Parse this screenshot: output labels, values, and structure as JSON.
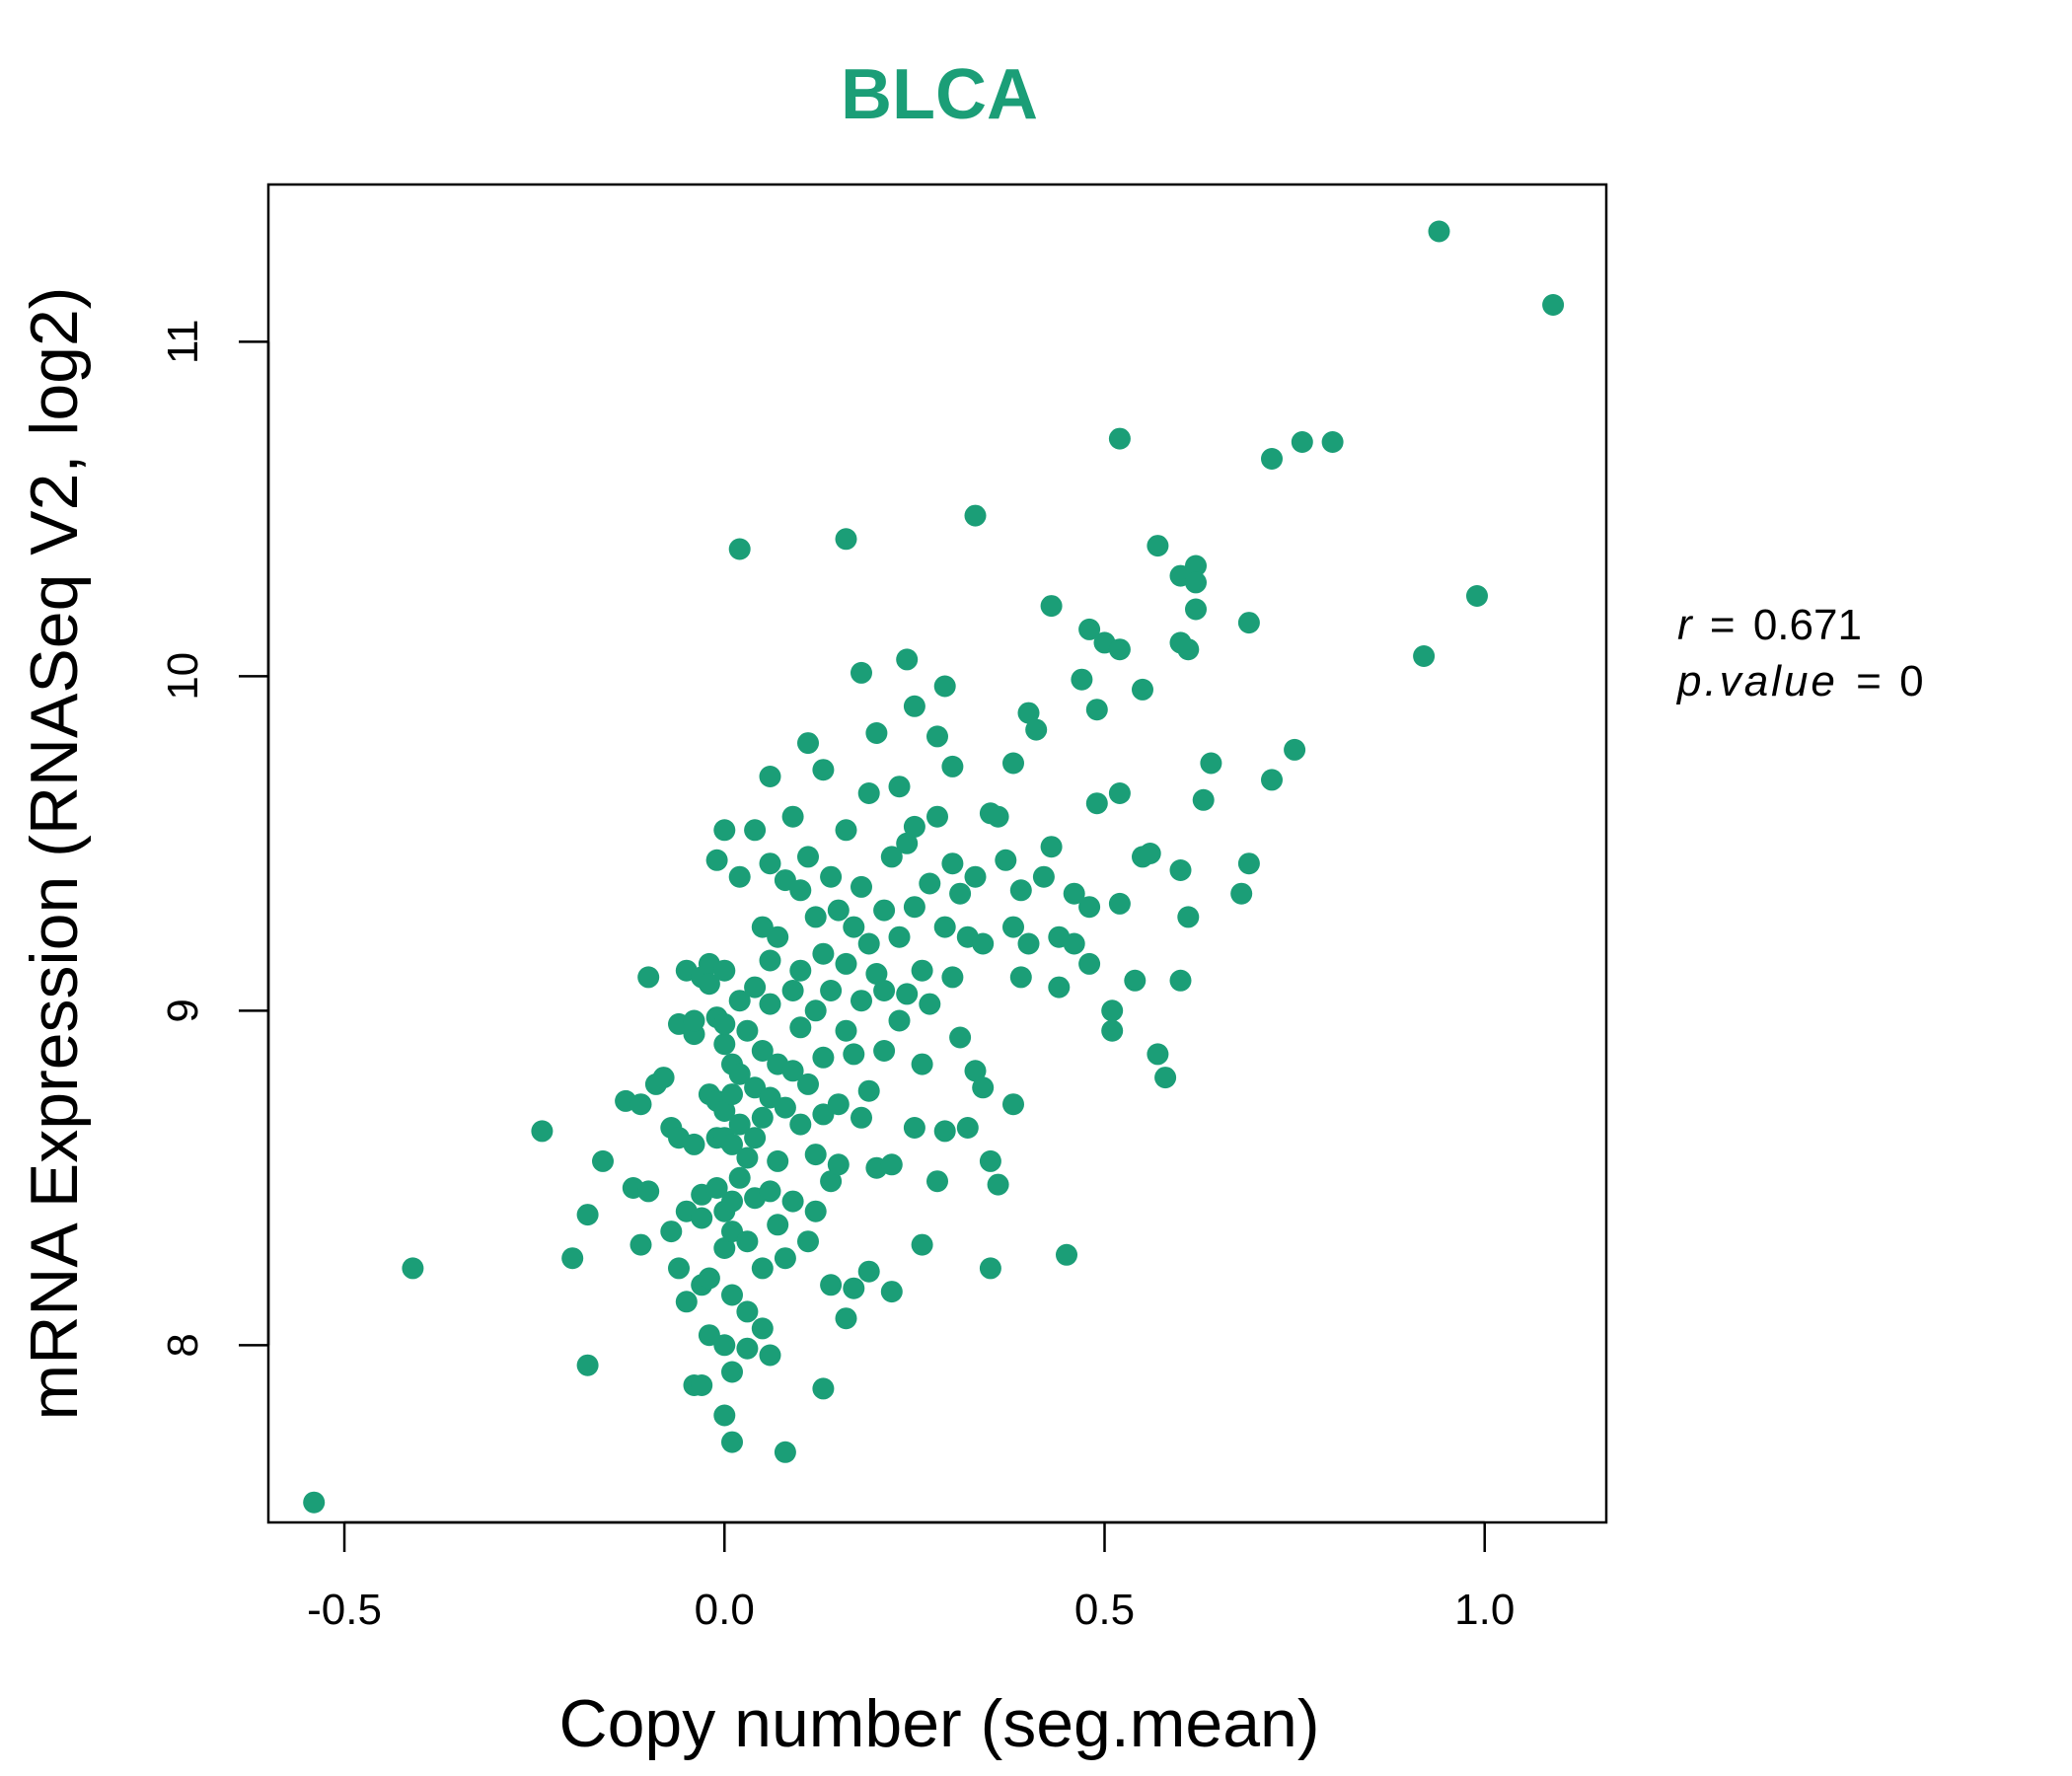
{
  "chart_data": {
    "type": "scatter",
    "title": "BLCA",
    "xlabel": "Copy number (seg.mean)",
    "ylabel": "mRNA Expression (RNASeq V2, log2)",
    "xlim": [
      -0.6,
      1.16
    ],
    "ylim": [
      7.47,
      11.47
    ],
    "xticks": [
      -0.5,
      0.0,
      0.5,
      1.0
    ],
    "xtick_labels": [
      "-0.5",
      "0.0",
      "0.5",
      "1.0"
    ],
    "yticks": [
      8,
      9,
      10,
      11
    ],
    "ytick_labels": [
      "8",
      "9",
      "10",
      "11"
    ],
    "grid": false,
    "color": "#1b9e77",
    "annotation": {
      "r_label": "r",
      "r_value": "0.671",
      "p_label": "p.value",
      "p_value": "0"
    },
    "points": [
      [
        -0.54,
        7.53
      ],
      [
        -0.41,
        8.23
      ],
      [
        -0.24,
        8.64
      ],
      [
        -0.2,
        8.26
      ],
      [
        -0.18,
        8.39
      ],
      [
        -0.18,
        7.94
      ],
      [
        -0.16,
        8.55
      ],
      [
        -0.13,
        8.73
      ],
      [
        -0.12,
        8.47
      ],
      [
        -0.11,
        8.72
      ],
      [
        -0.11,
        8.3
      ],
      [
        -0.1,
        8.46
      ],
      [
        -0.1,
        9.1
      ],
      [
        -0.09,
        8.78
      ],
      [
        -0.08,
        8.8
      ],
      [
        -0.07,
        8.34
      ],
      [
        -0.07,
        8.65
      ],
      [
        -0.06,
        8.62
      ],
      [
        -0.06,
        8.96
      ],
      [
        -0.06,
        8.23
      ],
      [
        -0.05,
        8.4
      ],
      [
        -0.05,
        8.13
      ],
      [
        -0.05,
        9.12
      ],
      [
        -0.04,
        8.6
      ],
      [
        -0.04,
        8.93
      ],
      [
        -0.04,
        8.97
      ],
      [
        -0.04,
        7.88
      ],
      [
        -0.03,
        9.1
      ],
      [
        -0.03,
        8.45
      ],
      [
        -0.03,
        8.38
      ],
      [
        -0.03,
        8.18
      ],
      [
        -0.03,
        7.88
      ],
      [
        -0.02,
        8.75
      ],
      [
        -0.02,
        9.14
      ],
      [
        -0.02,
        9.08
      ],
      [
        -0.02,
        8.2
      ],
      [
        -0.02,
        8.03
      ],
      [
        -0.01,
        8.73
      ],
      [
        -0.01,
        9.45
      ],
      [
        -0.01,
        8.62
      ],
      [
        -0.01,
        8.98
      ],
      [
        -0.01,
        8.47
      ],
      [
        0.0,
        8.7
      ],
      [
        0.0,
        9.12
      ],
      [
        0.0,
        8.9
      ],
      [
        0.0,
        8.62
      ],
      [
        0.0,
        8.4
      ],
      [
        0.0,
        8.29
      ],
      [
        0.0,
        8.0
      ],
      [
        0.0,
        7.79
      ],
      [
        0.0,
        8.96
      ],
      [
        0.0,
        9.54
      ],
      [
        0.01,
        8.75
      ],
      [
        0.01,
        8.6
      ],
      [
        0.01,
        8.84
      ],
      [
        0.01,
        8.43
      ],
      [
        0.01,
        8.34
      ],
      [
        0.01,
        8.15
      ],
      [
        0.01,
        7.92
      ],
      [
        0.01,
        7.71
      ],
      [
        0.02,
        9.03
      ],
      [
        0.02,
        8.81
      ],
      [
        0.02,
        8.66
      ],
      [
        0.02,
        8.5
      ],
      [
        0.02,
        9.4
      ],
      [
        0.02,
        10.38
      ],
      [
        0.03,
        8.94
      ],
      [
        0.03,
        8.56
      ],
      [
        0.03,
        8.31
      ],
      [
        0.03,
        8.1
      ],
      [
        0.03,
        7.99
      ],
      [
        0.04,
        9.07
      ],
      [
        0.04,
        8.77
      ],
      [
        0.04,
        8.44
      ],
      [
        0.04,
        8.62
      ],
      [
        0.04,
        9.54
      ],
      [
        0.05,
        8.88
      ],
      [
        0.05,
        8.68
      ],
      [
        0.05,
        8.23
      ],
      [
        0.05,
        8.05
      ],
      [
        0.05,
        9.25
      ],
      [
        0.06,
        9.02
      ],
      [
        0.06,
        8.74
      ],
      [
        0.06,
        8.46
      ],
      [
        0.06,
        9.15
      ],
      [
        0.06,
        9.44
      ],
      [
        0.06,
        9.7
      ],
      [
        0.06,
        7.97
      ],
      [
        0.07,
        8.84
      ],
      [
        0.07,
        8.55
      ],
      [
        0.07,
        8.36
      ],
      [
        0.07,
        9.22
      ],
      [
        0.08,
        8.71
      ],
      [
        0.08,
        8.26
      ],
      [
        0.08,
        9.39
      ],
      [
        0.08,
        7.68
      ],
      [
        0.09,
        9.06
      ],
      [
        0.09,
        8.82
      ],
      [
        0.09,
        8.43
      ],
      [
        0.09,
        9.58
      ],
      [
        0.1,
        8.95
      ],
      [
        0.1,
        8.66
      ],
      [
        0.1,
        9.36
      ],
      [
        0.1,
        9.12
      ],
      [
        0.11,
        8.78
      ],
      [
        0.11,
        8.31
      ],
      [
        0.11,
        9.8
      ],
      [
        0.11,
        9.46
      ],
      [
        0.12,
        9.0
      ],
      [
        0.12,
        8.57
      ],
      [
        0.12,
        8.4
      ],
      [
        0.12,
        9.28
      ],
      [
        0.13,
        8.86
      ],
      [
        0.13,
        8.69
      ],
      [
        0.13,
        9.72
      ],
      [
        0.13,
        9.17
      ],
      [
        0.13,
        7.87
      ],
      [
        0.14,
        9.06
      ],
      [
        0.14,
        8.49
      ],
      [
        0.14,
        8.18
      ],
      [
        0.14,
        9.4
      ],
      [
        0.15,
        8.72
      ],
      [
        0.15,
        9.3
      ],
      [
        0.15,
        8.54
      ],
      [
        0.16,
        9.14
      ],
      [
        0.16,
        8.94
      ],
      [
        0.16,
        9.54
      ],
      [
        0.16,
        8.08
      ],
      [
        0.16,
        10.41
      ],
      [
        0.17,
        8.87
      ],
      [
        0.17,
        9.25
      ],
      [
        0.17,
        8.17
      ],
      [
        0.18,
        9.03
      ],
      [
        0.18,
        8.68
      ],
      [
        0.18,
        9.37
      ],
      [
        0.18,
        10.01
      ],
      [
        0.19,
        9.2
      ],
      [
        0.19,
        8.76
      ],
      [
        0.19,
        9.65
      ],
      [
        0.19,
        8.22
      ],
      [
        0.2,
        9.11
      ],
      [
        0.2,
        8.53
      ],
      [
        0.2,
        9.83
      ],
      [
        0.21,
        9.3
      ],
      [
        0.21,
        8.88
      ],
      [
        0.21,
        9.06
      ],
      [
        0.22,
        9.46
      ],
      [
        0.22,
        8.54
      ],
      [
        0.22,
        8.16
      ],
      [
        0.23,
        9.22
      ],
      [
        0.23,
        9.67
      ],
      [
        0.23,
        8.97
      ],
      [
        0.24,
        9.5
      ],
      [
        0.24,
        9.05
      ],
      [
        0.24,
        10.05
      ],
      [
        0.25,
        9.31
      ],
      [
        0.25,
        9.55
      ],
      [
        0.25,
        8.65
      ],
      [
        0.25,
        9.91
      ],
      [
        0.26,
        9.12
      ],
      [
        0.26,
        8.84
      ],
      [
        0.26,
        8.3
      ],
      [
        0.27,
        9.38
      ],
      [
        0.27,
        9.02
      ],
      [
        0.28,
        9.58
      ],
      [
        0.28,
        8.49
      ],
      [
        0.28,
        9.82
      ],
      [
        0.29,
        9.25
      ],
      [
        0.29,
        8.64
      ],
      [
        0.29,
        9.97
      ],
      [
        0.3,
        9.1
      ],
      [
        0.3,
        9.44
      ],
      [
        0.3,
        9.73
      ],
      [
        0.31,
        8.92
      ],
      [
        0.31,
        9.35
      ],
      [
        0.32,
        9.22
      ],
      [
        0.32,
        8.65
      ],
      [
        0.33,
        9.4
      ],
      [
        0.33,
        8.82
      ],
      [
        0.33,
        10.48
      ],
      [
        0.34,
        9.2
      ],
      [
        0.34,
        8.77
      ],
      [
        0.35,
        9.59
      ],
      [
        0.35,
        8.55
      ],
      [
        0.35,
        8.23
      ],
      [
        0.36,
        9.58
      ],
      [
        0.36,
        8.48
      ],
      [
        0.37,
        9.45
      ],
      [
        0.38,
        9.25
      ],
      [
        0.38,
        8.72
      ],
      [
        0.38,
        9.74
      ],
      [
        0.39,
        9.36
      ],
      [
        0.39,
        9.1
      ],
      [
        0.4,
        9.89
      ],
      [
        0.4,
        9.2
      ],
      [
        0.41,
        9.84
      ],
      [
        0.42,
        9.4
      ],
      [
        0.43,
        9.49
      ],
      [
        0.43,
        10.21
      ],
      [
        0.44,
        9.22
      ],
      [
        0.44,
        9.07
      ],
      [
        0.45,
        8.27
      ],
      [
        0.46,
        9.35
      ],
      [
        0.46,
        9.2
      ],
      [
        0.47,
        9.99
      ],
      [
        0.48,
        9.31
      ],
      [
        0.48,
        9.14
      ],
      [
        0.48,
        10.14
      ],
      [
        0.49,
        9.9
      ],
      [
        0.49,
        9.62
      ],
      [
        0.5,
        10.1
      ],
      [
        0.51,
        9.0
      ],
      [
        0.51,
        8.94
      ],
      [
        0.52,
        10.08
      ],
      [
        0.52,
        9.65
      ],
      [
        0.52,
        9.32
      ],
      [
        0.52,
        10.71
      ],
      [
        0.54,
        9.09
      ],
      [
        0.55,
        9.96
      ],
      [
        0.55,
        9.46
      ],
      [
        0.56,
        9.47
      ],
      [
        0.57,
        10.39
      ],
      [
        0.57,
        8.87
      ],
      [
        0.58,
        8.8
      ],
      [
        0.6,
        10.1
      ],
      [
        0.6,
        9.42
      ],
      [
        0.6,
        9.09
      ],
      [
        0.6,
        10.3
      ],
      [
        0.61,
        10.08
      ],
      [
        0.61,
        9.28
      ],
      [
        0.62,
        10.33
      ],
      [
        0.62,
        10.2
      ],
      [
        0.62,
        10.28
      ],
      [
        0.63,
        9.63
      ],
      [
        0.64,
        9.74
      ],
      [
        0.68,
        9.35
      ],
      [
        0.69,
        9.44
      ],
      [
        0.69,
        10.16
      ],
      [
        0.72,
        10.65
      ],
      [
        0.72,
        9.69
      ],
      [
        0.75,
        9.78
      ],
      [
        0.76,
        10.7
      ],
      [
        0.8,
        10.7
      ],
      [
        0.92,
        10.06
      ],
      [
        0.94,
        11.33
      ],
      [
        0.99,
        10.24
      ],
      [
        1.09,
        11.11
      ]
    ]
  }
}
